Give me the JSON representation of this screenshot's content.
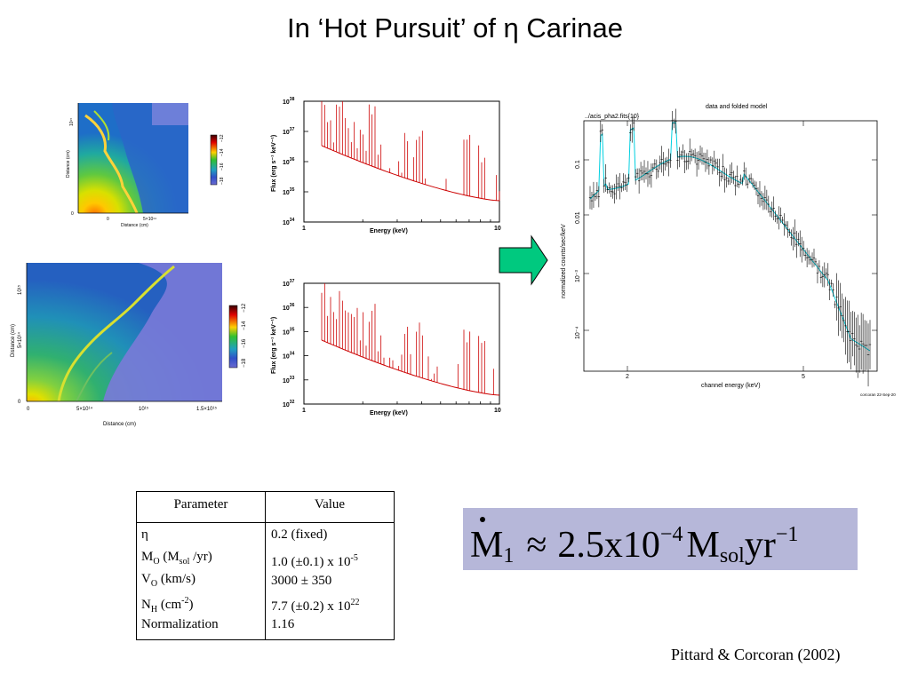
{
  "slide": {
    "title": "In ‘Hot Pursuit’ of η Carinae",
    "citation": "Pittard & Corcoran (2002)"
  },
  "sim_top": {
    "ylabel": "Distance (cm)",
    "xlabel": "Distance (cm)",
    "xticks": [
      "0",
      "5×10¹⁴"
    ],
    "yticks": [
      "0",
      "5×10¹⁴",
      "10¹⁵"
    ],
    "colorbar_ticks": [
      "−18",
      "−16",
      "−14",
      "−12"
    ]
  },
  "sim_bottom": {
    "ylabel": "Distance (cm)",
    "xlabel": "Distance (cm)",
    "xticks": [
      "0",
      "5×10¹⁴",
      "10¹⁵",
      "1.5×10¹⁵"
    ],
    "yticks": [
      "0",
      "5×10¹⁴",
      "10¹⁵"
    ],
    "colorbar_ticks": [
      "−18",
      "−16",
      "−14",
      "−12"
    ]
  },
  "chart_data": [
    {
      "type": "line",
      "xlabel": "Energy (keV)",
      "ylabel": "Flux (erg s⁻¹ keV⁻¹)",
      "x_log": true,
      "y_log": true,
      "xlim": [
        1,
        10
      ],
      "ylim_exp": [
        34,
        38
      ],
      "xticks": [
        "1",
        "10"
      ],
      "yticks_exp": [
        "34",
        "35",
        "36",
        "37",
        "38"
      ],
      "series_color": "#cc0000"
    },
    {
      "type": "line",
      "xlabel": "Energy (keV)",
      "ylabel": "Flux (erg s⁻¹ keV⁻¹)",
      "x_log": true,
      "y_log": true,
      "xlim": [
        1,
        10
      ],
      "ylim_exp": [
        32,
        37
      ],
      "xticks": [
        "1",
        "10"
      ],
      "yticks_exp": [
        "32",
        "33",
        "34",
        "35",
        "36",
        "37"
      ],
      "series_color": "#cc0000"
    },
    {
      "type": "scatter",
      "title": "data and folded model",
      "subtitle": "../acis_pha2.fits{10}",
      "xlabel": "channel energy (keV)",
      "ylabel": "normalized counts/sec/keV",
      "x_log": true,
      "y_log": true,
      "xticks": [
        "2",
        "5"
      ],
      "yticks": [
        "0.1",
        "0.01",
        "10⁻³",
        "10⁻⁴"
      ],
      "data_color": "#000000",
      "model_color": "#00d0e0",
      "footer": "corcoran 22-Sep-20"
    }
  ],
  "param_table": {
    "headers": [
      "Parameter",
      "Value"
    ],
    "rows": [
      {
        "name": "η",
        "value": "0.2 (fixed)"
      },
      {
        "name_main": "M",
        "name_sub": "O",
        "name_rest": " (M",
        "name_sub2": "sol",
        "name_end": " /yr)",
        "value_main": "1.0 (±0.1) x 10",
        "value_sup": "-5"
      },
      {
        "name_main": "V",
        "name_sub": "O",
        "name_end": " (km/s)",
        "value": "3000 ± 350"
      },
      {
        "name_main": "N",
        "name_sub": "H",
        "name_rest": " (cm",
        "name_sup": "-2",
        "name_end": ")",
        "value_main": "7.7 (±0.2) x 10",
        "value_sup": "22"
      },
      {
        "name": "Normalization",
        "value": "1.16"
      }
    ]
  },
  "formula": {
    "lhs": "M",
    "lhs_sub": "1",
    "approx": "≈",
    "value": "2.5x10",
    "exp": "−4",
    "unit": "M",
    "unit_sub": "sol",
    "unit2": "yr",
    "unit2_exp": "−1"
  },
  "colors": {
    "arrow_fill": "#00c97f",
    "formula_bg": "#b6b7d9",
    "spectrum_line": "#cc0000"
  }
}
